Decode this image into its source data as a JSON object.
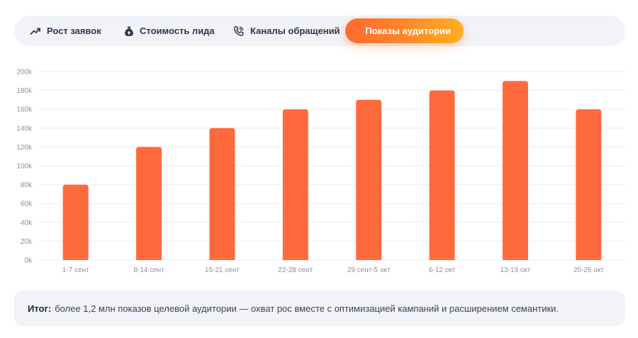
{
  "tabs": [
    {
      "label": "Рост заявок",
      "icon": "trending-up-icon",
      "active": false
    },
    {
      "label": "Стоимость лида",
      "icon": "money-bag-icon",
      "active": false
    },
    {
      "label": "Каналы обращений",
      "icon": "phone-call-icon",
      "active": false
    },
    {
      "label": "Показы аудитории",
      "icon": "eye-icon",
      "active": true
    }
  ],
  "colors": {
    "bar": "#ff6a3d",
    "accent_start": "#ff6a2f",
    "accent_end": "#ffb020",
    "panel_bg": "#f2f3f8",
    "grid": "#e9ebf0",
    "axis_text": "#8a8f9e"
  },
  "chart_data": {
    "type": "bar",
    "categories": [
      "1-7 сент",
      "8-14 сент",
      "15-21 сент",
      "22-28 сент",
      "29 сент-5 окт",
      "6-12 окт",
      "13-19 окт",
      "20-26 окт"
    ],
    "values": [
      80000,
      120000,
      140000,
      160000,
      170000,
      180000,
      190000,
      160000
    ],
    "ylim": [
      0,
      200000
    ],
    "yticks": [
      0,
      20000,
      40000,
      60000,
      80000,
      100000,
      120000,
      140000,
      160000,
      180000,
      200000
    ],
    "ytick_labels": [
      "0k",
      "20k",
      "40k",
      "60k",
      "80k",
      "100k",
      "120k",
      "140k",
      "160k",
      "180k",
      "200k"
    ],
    "grid": true,
    "legend": "none"
  },
  "summary": {
    "label": "Итог:",
    "text": "более 1,2 млн показов целевой аудитории — охват рос вместе с оптимизацией кампаний и расширением семантики."
  }
}
